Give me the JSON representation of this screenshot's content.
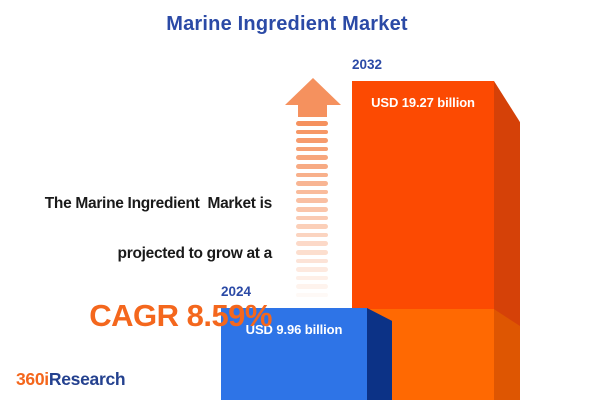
{
  "title": "Marine Ingredient Market",
  "annotation": {
    "line1": "The Marine Ingredient  Market is",
    "line2": "projected to grow at a",
    "cagr": "CAGR 8.59%"
  },
  "bars": {
    "b2024": {
      "year": "2024",
      "value_label": "USD 9.96 billion",
      "front_color": "#2E74E7",
      "side_color": "#0C3286"
    },
    "b2032": {
      "year": "2032",
      "value_label": "USD 19.27 billion",
      "front_color_top": "#FC4A02",
      "front_color_bottom": "#FF6902",
      "side_color_top": "#D54108",
      "side_color_bottom": "#DE5602"
    }
  },
  "arrow": {
    "color": "#F5915E",
    "stripe_count": 21
  },
  "logo": {
    "part1": "360i",
    "part2": "Research",
    "color1": "#F4671D",
    "color2": "#24418F"
  },
  "colors": {
    "title_blue": "#2B4AA6",
    "cagr_orange": "#F4671D",
    "annotation_text": "#1A1A1A",
    "background": "#FFFFFF"
  },
  "chart_data": {
    "type": "bar",
    "title": "Marine Ingredient Market",
    "categories": [
      "2024",
      "2032"
    ],
    "values": [
      9.96,
      19.27
    ],
    "unit": "USD billion",
    "value_labels": [
      "USD 9.96 billion",
      "USD 19.27 billion"
    ],
    "cagr_percent": 8.59,
    "legend": "none",
    "grid": false,
    "orientation": "vertical",
    "bar_colors": [
      "#2E74E7",
      "#FC4A02"
    ]
  }
}
